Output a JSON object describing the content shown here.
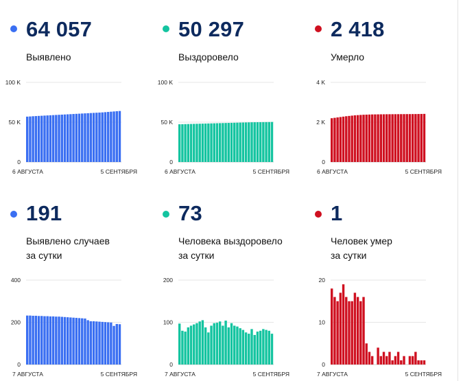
{
  "panels": [
    {
      "value": "64 057",
      "label_lines": [
        "Выявлено"
      ],
      "color": "#3a6ff2",
      "chart_data": {
        "type": "bar",
        "series": [
          {
            "values": [
              57000,
              57200,
              57500,
              57700,
              57900,
              58100,
              58300,
              58500,
              58700,
              58900,
              59100,
              59300,
              59500,
              59700,
              59900,
              60100,
              60300,
              60500,
              60700,
              60900,
              61100,
              61300,
              61500,
              61700,
              61900,
              62100,
              62300,
              62600,
              62900,
              63200,
              63500,
              63800,
              64057
            ]
          }
        ],
        "ylim": [
          0,
          100000
        ],
        "y_ticks": [
          {
            "value": 0,
            "label": "0"
          },
          {
            "value": 50000,
            "label": "50 K"
          },
          {
            "value": 100000,
            "label": "100 K"
          }
        ],
        "x_tick_labels": [
          "6 АВГУСТА",
          "5 СЕНТЯБРЯ"
        ],
        "grid": true
      }
    },
    {
      "value": "50 297",
      "label_lines": [
        "Выздоровело"
      ],
      "color": "#14c4a0",
      "chart_data": {
        "type": "bar",
        "series": [
          {
            "values": [
              47400,
              47500,
              47600,
              47700,
              47800,
              47900,
              48000,
              48100,
              48200,
              48300,
              48400,
              48500,
              48600,
              48700,
              48800,
              48900,
              49000,
              49100,
              49200,
              49300,
              49400,
              49500,
              49600,
              49700,
              49800,
              49900,
              49950,
              50000,
              50050,
              50100,
              50150,
              50200,
              50297
            ]
          }
        ],
        "ylim": [
          0,
          100000
        ],
        "y_ticks": [
          {
            "value": 0,
            "label": "0"
          },
          {
            "value": 50000,
            "label": "50 K"
          },
          {
            "value": 100000,
            "label": "100 K"
          }
        ],
        "x_tick_labels": [
          "6 АВГУСТА",
          "5 СЕНТЯБРЯ"
        ],
        "grid": true
      }
    },
    {
      "value": "2 418",
      "label_lines": [
        "Умерло"
      ],
      "color": "#cf1020",
      "chart_data": {
        "type": "bar",
        "series": [
          {
            "values": [
              2200,
              2220,
              2240,
              2260,
              2280,
              2300,
              2315,
              2330,
              2345,
              2355,
              2365,
              2375,
              2380,
              2385,
              2390,
              2392,
              2394,
              2396,
              2398,
              2400,
              2401,
              2402,
              2403,
              2404,
              2405,
              2406,
              2407,
              2408,
              2409,
              2410,
              2412,
              2415,
              2418
            ]
          }
        ],
        "ylim": [
          0,
          4000
        ],
        "y_ticks": [
          {
            "value": 0,
            "label": "0"
          },
          {
            "value": 2000,
            "label": "2 K"
          },
          {
            "value": 4000,
            "label": "4 K"
          }
        ],
        "x_tick_labels": [
          "6 АВГУСТА",
          "5 СЕНТЯБРЯ"
        ],
        "grid": true
      }
    },
    {
      "value": "191",
      "label_lines": [
        "Выявлено случаев",
        "за сутки"
      ],
      "color": "#3a6ff2",
      "chart_data": {
        "type": "bar",
        "series": [
          {
            "values": [
              232,
              232,
              231,
              231,
              230,
              230,
              229,
              229,
              228,
              228,
              227,
              227,
              226,
              225,
              224,
              223,
              222,
              221,
              220,
              219,
              218,
              210,
              205,
              205,
              204,
              203,
              202,
              201,
              200,
              199,
              183,
              192,
              191
            ]
          }
        ],
        "ylim": [
          0,
          400
        ],
        "y_ticks": [
          {
            "value": 0,
            "label": "0"
          },
          {
            "value": 200,
            "label": "200"
          },
          {
            "value": 400,
            "label": "400"
          }
        ],
        "x_tick_labels": [
          "7 АВГУСТА",
          "5 СЕНТЯБРЯ"
        ],
        "grid": true
      }
    },
    {
      "value": "73",
      "label_lines": [
        "Человека выздоровело",
        "за сутки"
      ],
      "color": "#14c4a0",
      "chart_data": {
        "type": "bar",
        "series": [
          {
            "values": [
              97,
              80,
              78,
              88,
              92,
              95,
              98,
              102,
              105,
              88,
              76,
              92,
              98,
              99,
              102,
              92,
              104,
              88,
              98,
              92,
              90,
              86,
              82,
              76,
              73,
              84,
              70,
              78,
              80,
              84,
              82,
              80,
              73
            ]
          }
        ],
        "ylim": [
          0,
          200
        ],
        "y_ticks": [
          {
            "value": 0,
            "label": "0"
          },
          {
            "value": 100,
            "label": "100"
          },
          {
            "value": 200,
            "label": "200"
          }
        ],
        "x_tick_labels": [
          "7 АВГУСТА",
          "5 СЕНТЯБРЯ"
        ],
        "grid": true
      }
    },
    {
      "value": "1",
      "label_lines": [
        "Человек умер",
        "за сутки"
      ],
      "color": "#cf1020",
      "chart_data": {
        "type": "bar",
        "series": [
          {
            "values": [
              18,
              16,
              15,
              17,
              19,
              16,
              15,
              15,
              17,
              16,
              15,
              16,
              5,
              3,
              2,
              0,
              4,
              2,
              3,
              2,
              3,
              1,
              2,
              3,
              1,
              2,
              0,
              2,
              2,
              3,
              1,
              1,
              1
            ]
          }
        ],
        "ylim": [
          0,
          20
        ],
        "y_ticks": [
          {
            "value": 0,
            "label": "0"
          },
          {
            "value": 10,
            "label": "10"
          },
          {
            "value": 20,
            "label": "20"
          }
        ],
        "x_tick_labels": [
          "7 АВГУСТА",
          "5 СЕНТЯБРЯ"
        ],
        "grid": true
      }
    }
  ]
}
